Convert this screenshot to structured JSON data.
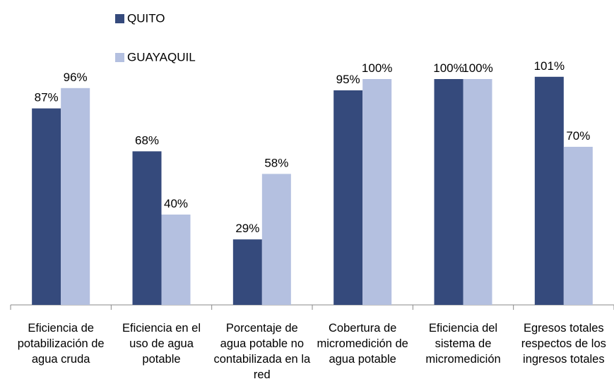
{
  "chart_data": {
    "type": "bar",
    "categories": [
      "Eficiencia de potabilización de agua cruda",
      "Eficiencia en el uso de agua potable",
      "Porcentaje de agua potable no contabilizada en la red",
      "Cobertura de micromedición de agua potable",
      "Eficiencia del sistema de micromedición",
      "Egresos totales respectos de los ingresos totales"
    ],
    "series": [
      {
        "name": "QUITO",
        "color": "#354a7c",
        "values": [
          87,
          68,
          29,
          95,
          100,
          101
        ],
        "value_labels": [
          "87%",
          "68%",
          "29%",
          "95%",
          "100%",
          "101%"
        ]
      },
      {
        "name": "GUAYAQUIL",
        "color": "#b4c0e0",
        "values": [
          96,
          40,
          58,
          100,
          100,
          70
        ],
        "value_labels": [
          "96%",
          "40%",
          "58%",
          "100%",
          "100%",
          "70%"
        ]
      }
    ],
    "ylim": [
      0,
      120
    ]
  }
}
